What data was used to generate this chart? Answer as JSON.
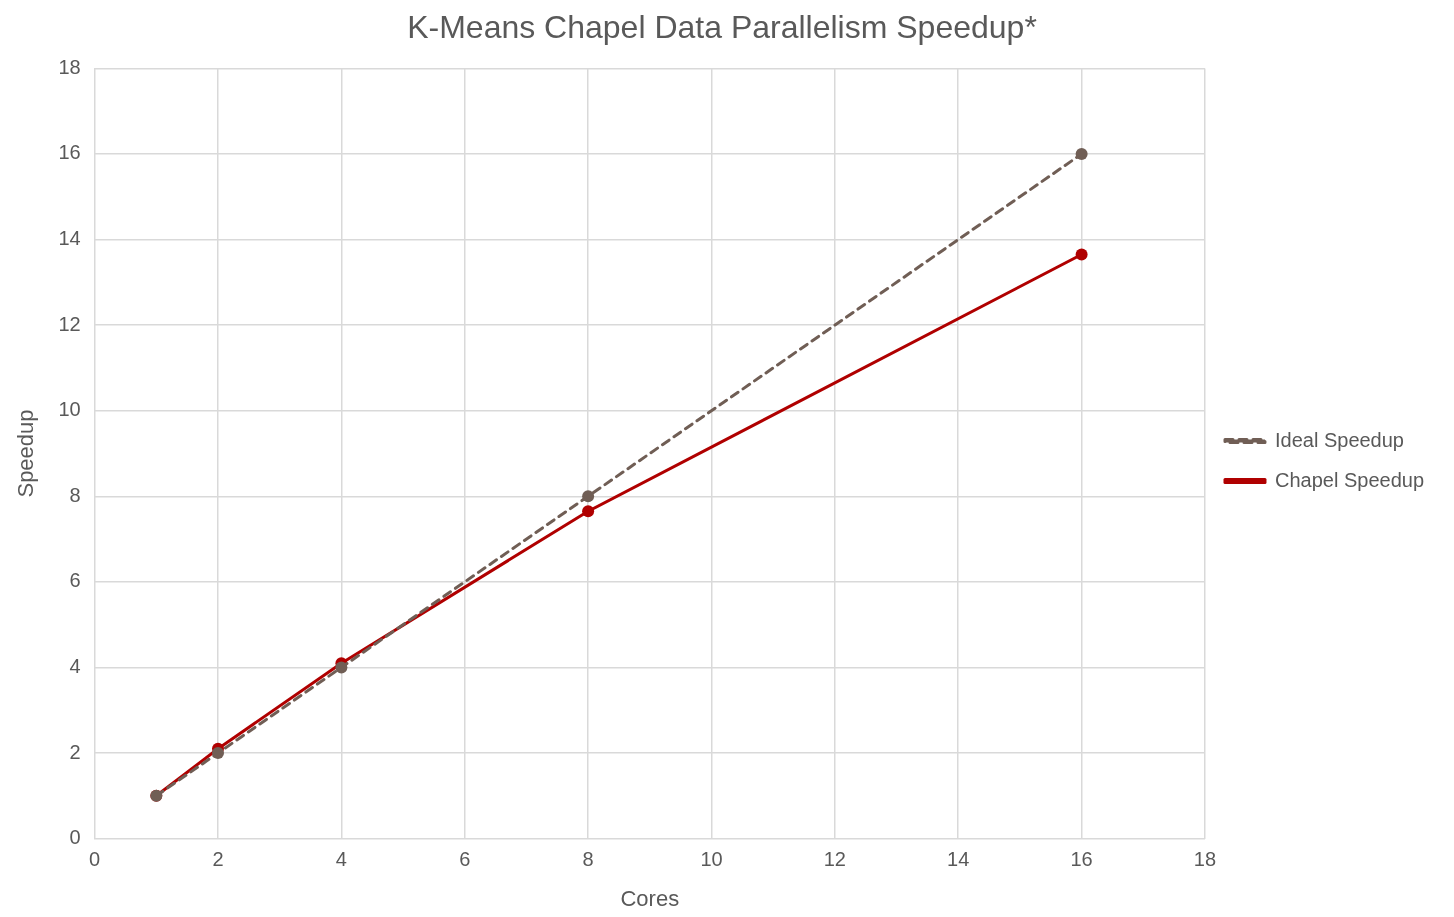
{
  "chart_data": {
    "type": "line",
    "title": "K-Means Chapel Data Parallelism Speedup*",
    "xlabel": "Cores",
    "ylabel": "Speedup",
    "series": [
      {
        "name": "Chapel Speedup",
        "color": "#b00000",
        "x": [
          1,
          2,
          4,
          8,
          16
        ],
        "values": [
          1,
          2.1,
          4.1,
          7.65,
          13.65
        ],
        "line_style": "solid"
      },
      {
        "name": "Ideal Speedup",
        "color": "#705e55",
        "x": [
          1,
          2,
          4,
          8,
          16
        ],
        "values": [
          1,
          2,
          4,
          8,
          16
        ],
        "line_style": "dashed"
      }
    ],
    "xlim": [
      0,
      18
    ],
    "xticks": [
      0,
      2,
      4,
      6,
      8,
      10,
      12,
      14,
      16,
      18
    ],
    "ylim": [
      0,
      18
    ],
    "yticks": [
      0,
      2,
      4,
      6,
      8,
      10,
      12,
      14,
      16,
      18
    ],
    "grid": true,
    "legend": "right",
    "marker": "circle"
  }
}
